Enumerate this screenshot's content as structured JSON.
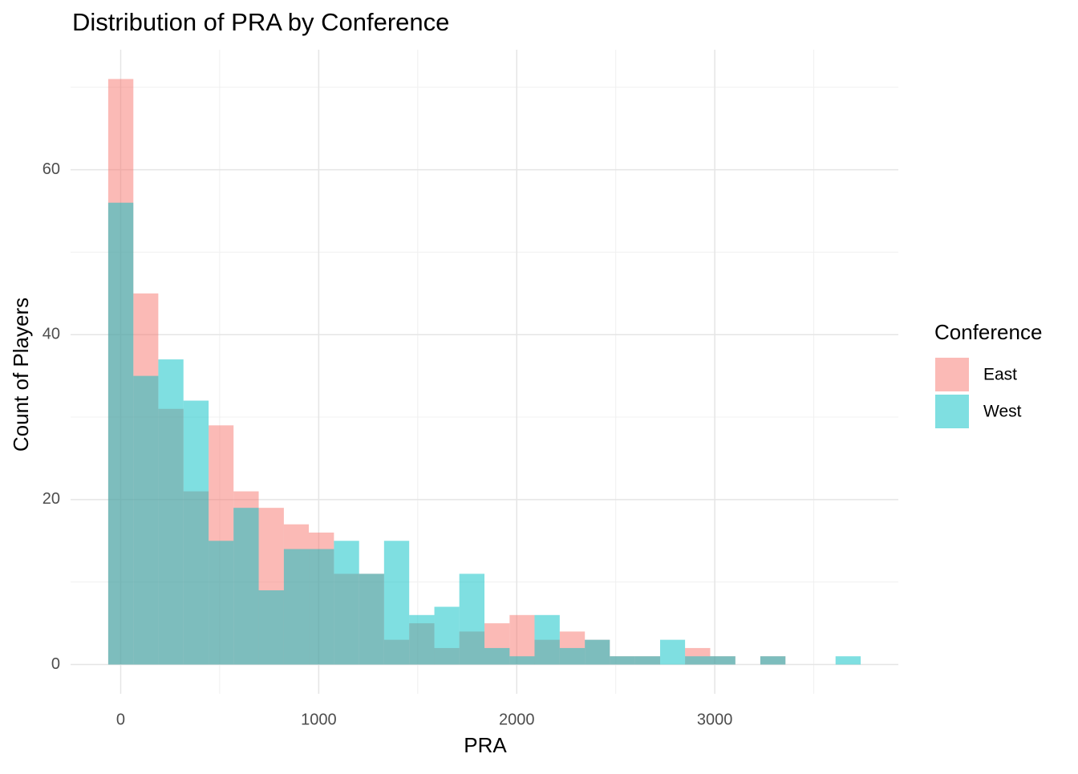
{
  "chart_data": {
    "type": "histogram",
    "title": "Distribution of PRA by Conference",
    "x_label": "PRA",
    "y_label": "Count of Players",
    "legend_title": "Conference",
    "legend_position": "right",
    "bins": [
      -63,
      64,
      190,
      317,
      444,
      570,
      697,
      824,
      950,
      1077,
      1204,
      1330,
      1457,
      1584,
      1710,
      1837,
      1964,
      2090,
      2217,
      2344,
      2470,
      2597,
      2724,
      2850,
      2977,
      3104,
      3230,
      3357,
      3484,
      3610,
      3737
    ],
    "series": [
      {
        "name": "East",
        "color": "#F8766D",
        "opacity": 0.5,
        "values": [
          71,
          45,
          31,
          21,
          29,
          21,
          19,
          17,
          16,
          11,
          11,
          3,
          5,
          2,
          4,
          5,
          6,
          3,
          4,
          3,
          1,
          1,
          0,
          2,
          1,
          0,
          1,
          0,
          0,
          0
        ]
      },
      {
        "name": "West",
        "color": "#00BFC4",
        "opacity": 0.5,
        "values": [
          56,
          35,
          37,
          32,
          15,
          19,
          9,
          14,
          14,
          15,
          11,
          15,
          6,
          7,
          11,
          2,
          1,
          6,
          2,
          3,
          1,
          1,
          3,
          1,
          1,
          0,
          1,
          0,
          0,
          1
        ]
      }
    ],
    "xlim": [
      -253,
      3927
    ],
    "xticks": [
      0,
      1000,
      2000,
      3000
    ],
    "xminor": [
      500,
      1500,
      2500,
      3500
    ],
    "ylim": [
      -3.55,
      74.55
    ],
    "yticks": [
      0,
      20,
      40,
      60
    ],
    "yminor": [
      10,
      30,
      50,
      70
    ],
    "grid": true
  }
}
